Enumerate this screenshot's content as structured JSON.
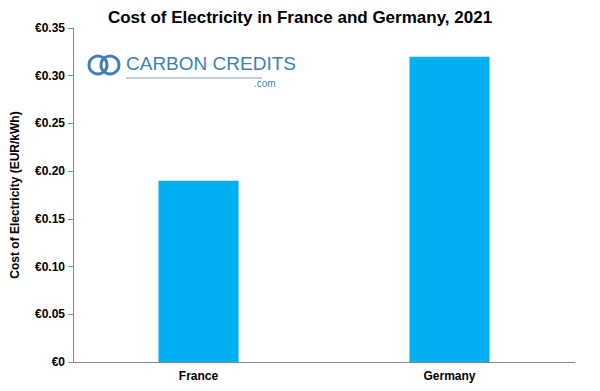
{
  "chart_data": {
    "type": "bar",
    "title": "Cost of Electricity in France and Germany, 2021",
    "y_label": "Cost of Electricity (EUR/kWh)",
    "categories": [
      "France",
      "Germany"
    ],
    "values": [
      0.19,
      0.32
    ],
    "color": "#00b0f0",
    "ylim": [
      0,
      0.35
    ],
    "yticks": [
      {
        "value": 0,
        "label": "€0"
      },
      {
        "value": 0.05,
        "label": "€0.05"
      },
      {
        "value": 0.1,
        "label": "€0.10"
      },
      {
        "value": 0.15,
        "label": "€0.15"
      },
      {
        "value": 0.2,
        "label": "€0.20"
      },
      {
        "value": 0.25,
        "label": "€0.25"
      },
      {
        "value": 0.3,
        "label": "€0.30"
      },
      {
        "value": 0.35,
        "label": "€0.35"
      }
    ],
    "grid": false,
    "annotations": [
      "CARBON CREDITS",
      ".com"
    ]
  }
}
